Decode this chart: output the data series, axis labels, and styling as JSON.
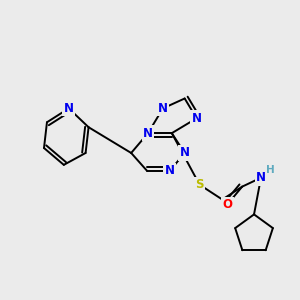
{
  "background_color": "#ebebeb",
  "bond_color": "#000000",
  "atom_colors": {
    "N": "#0000ee",
    "S": "#bbbb00",
    "O": "#ff0000",
    "H": "#5faabf",
    "C": "#000000"
  },
  "bond_lw": 1.4,
  "font_size": 8.5
}
